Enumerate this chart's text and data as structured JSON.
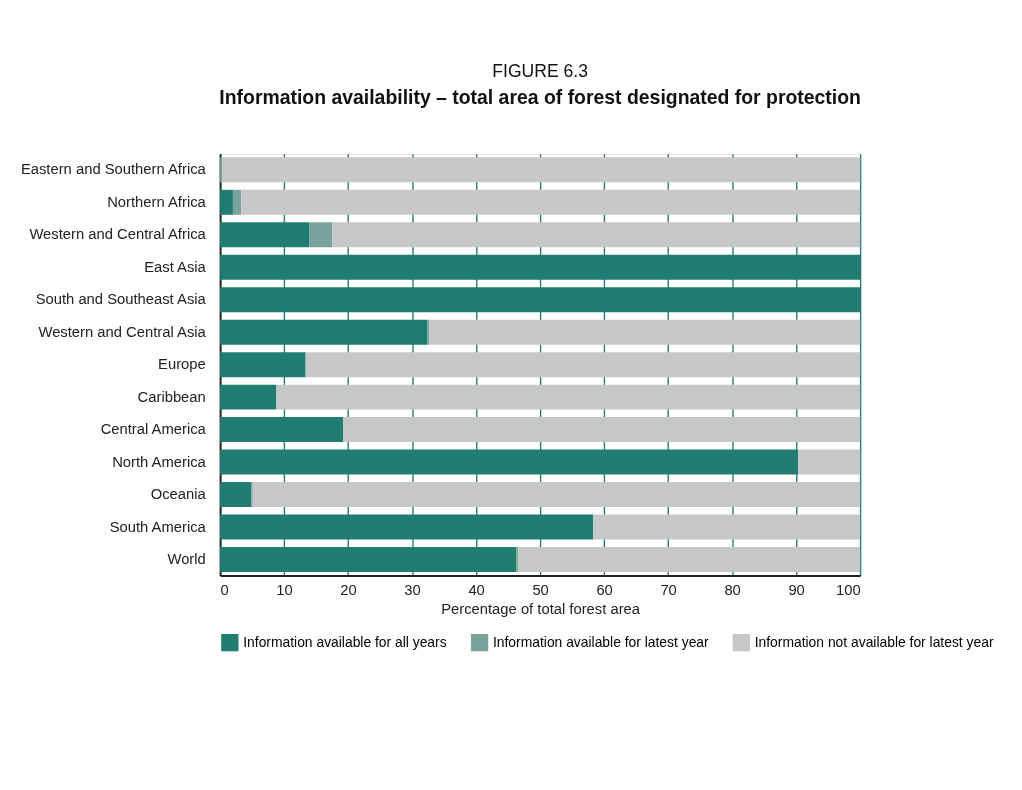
{
  "chart_data": {
    "type": "bar",
    "orientation": "horizontal",
    "stacked": true,
    "title": "FIGURE 6.3",
    "subtitle": "Information availability – total area of forest designated for protection",
    "xlabel": "Percentage of total forest area",
    "categories": [
      "Eastern and Southern Africa",
      "Northern Africa",
      "Western and Central Africa",
      "East Asia",
      "South and Southeast Asia",
      "Western and Central Asia",
      "Europe",
      "Caribbean",
      "Central America",
      "North America",
      "Oceania",
      "South America",
      "World"
    ],
    "series": [
      {
        "name": "Information available for all years",
        "color": "#217d71",
        "values": [
          0,
          2.0,
          13.9,
          100,
          100,
          32.4,
          13.3,
          8.8,
          19.2,
          90.3,
          4.9,
          58.3,
          46.3
        ]
      },
      {
        "name": "Information available for latest year",
        "color": "#79a39c",
        "values": [
          0.3,
          1.3,
          3.6,
          0,
          0,
          0.3,
          0.2,
          0,
          0,
          0,
          0.2,
          0,
          0.3
        ]
      },
      {
        "name": "Information not available for latest year",
        "color": "#c6c7c9",
        "values": [
          99.7,
          96.7,
          82.5,
          0,
          0,
          67.3,
          86.5,
          91.2,
          80.8,
          9.7,
          94.9,
          41.7,
          53.4
        ]
      }
    ],
    "xlim": [
      0,
      100
    ],
    "xticks": [
      0,
      10,
      20,
      30,
      40,
      50,
      60,
      70,
      80,
      90,
      100
    ],
    "grid": "x",
    "legend": "bottom"
  }
}
